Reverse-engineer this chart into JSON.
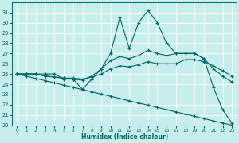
{
  "xlabel": "Humidex (Indice chaleur)",
  "bg_color": "#c5eeec",
  "line_color": "#006666",
  "grid_color": "#b0e0dc",
  "xlim": [
    -0.5,
    23.5
  ],
  "ylim": [
    20,
    32
  ],
  "xticks": [
    0,
    1,
    2,
    3,
    4,
    5,
    6,
    7,
    8,
    9,
    10,
    11,
    12,
    13,
    14,
    15,
    16,
    17,
    18,
    19,
    20,
    21,
    22,
    23
  ],
  "yticks": [
    20,
    21,
    22,
    23,
    24,
    25,
    26,
    27,
    28,
    29,
    30,
    31
  ],
  "series": [
    {
      "x": [
        0,
        1,
        2,
        3,
        4,
        5,
        6,
        7,
        8,
        9,
        10,
        11,
        12,
        13,
        14,
        15,
        16,
        17,
        18,
        19,
        20,
        21,
        22,
        23
      ],
      "y": [
        25,
        25,
        25,
        25,
        25,
        24.5,
        24.5,
        23.5,
        24.5,
        25.5,
        27,
        30.5,
        27.5,
        30,
        31.2,
        30,
        28,
        27,
        27,
        27,
        26.5,
        23.7,
        21.5,
        20.2
      ]
    },
    {
      "x": [
        0,
        1,
        2,
        3,
        4,
        5,
        6,
        7,
        8,
        9,
        10,
        11,
        12,
        13,
        14,
        15,
        16,
        17,
        18,
        19,
        20,
        21,
        22,
        23
      ],
      "y": [
        25,
        25,
        25,
        24.8,
        24.7,
        24.6,
        24.5,
        24.4,
        24.8,
        25.5,
        26.3,
        26.7,
        26.5,
        26.8,
        27.3,
        27.0,
        26.8,
        27.0,
        27.0,
        27.0,
        26.5,
        25.5,
        24.8,
        24.2
      ]
    },
    {
      "x": [
        0,
        1,
        2,
        3,
        4,
        5,
        6,
        7,
        8,
        9,
        10,
        11,
        12,
        13,
        14,
        15,
        16,
        17,
        18,
        19,
        20,
        21,
        22,
        23
      ],
      "y": [
        25,
        25,
        25,
        24.8,
        24.7,
        24.6,
        24.6,
        24.5,
        24.7,
        25.0,
        25.5,
        25.8,
        25.7,
        25.9,
        26.2,
        26.0,
        26.0,
        26.0,
        26.4,
        26.4,
        26.2,
        25.8,
        25.3,
        24.8
      ]
    },
    {
      "x": [
        0,
        1,
        2,
        3,
        4,
        5,
        6,
        7,
        8,
        9,
        10,
        11,
        12,
        13,
        14,
        15,
        16,
        17,
        18,
        19,
        20,
        21,
        22,
        23
      ],
      "y": [
        25,
        24.78,
        24.57,
        24.35,
        24.13,
        23.91,
        23.7,
        23.48,
        23.26,
        23.04,
        22.83,
        22.61,
        22.39,
        22.17,
        21.96,
        21.74,
        21.52,
        21.3,
        21.09,
        20.87,
        20.65,
        20.43,
        20.22,
        20.0
      ]
    }
  ]
}
